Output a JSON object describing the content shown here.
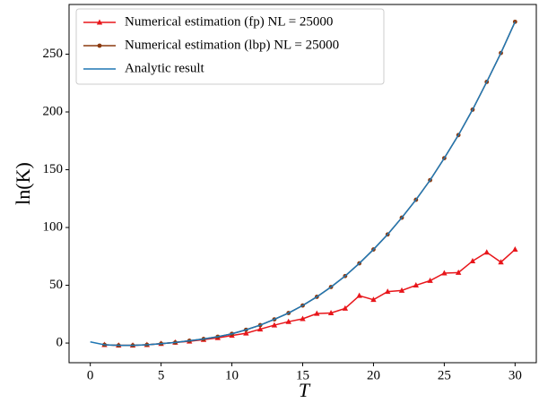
{
  "chart_data": {
    "type": "line",
    "xlabel": "T",
    "ylabel": "ln(K)",
    "xlim": [
      -1.5,
      31.5
    ],
    "ylim": [
      -17,
      293
    ],
    "xticks": [
      0,
      5,
      10,
      15,
      20,
      25,
      30
    ],
    "yticks": [
      0,
      50,
      100,
      150,
      200,
      250
    ],
    "legend": "upper left",
    "series": [
      {
        "name": "Numerical estimation (fp) NL = 25000",
        "color": "#e8161b",
        "marker": "triangle",
        "x": [
          1,
          2,
          3,
          4,
          5,
          6,
          7,
          8,
          9,
          10,
          11,
          12,
          13,
          14,
          15,
          16,
          17,
          18,
          19,
          20,
          21,
          22,
          23,
          24,
          25,
          26,
          27,
          28,
          29,
          30
        ],
        "values": [
          -1.5,
          -2,
          -2,
          -1.5,
          -0.5,
          0.5,
          1.5,
          3,
          4.5,
          6.5,
          8.5,
          12,
          15.5,
          18.5,
          21,
          25.5,
          26,
          30,
          41,
          37.5,
          44.5,
          45.5,
          50,
          54,
          60.5,
          61,
          71,
          78.5,
          70,
          81
        ]
      },
      {
        "name": "Numerical estimation (lbp) NL = 25000",
        "color": "#8b3a0f",
        "marker": "circle",
        "x": [
          1,
          2,
          3,
          4,
          5,
          6,
          7,
          8,
          9,
          10,
          11,
          12,
          13,
          14,
          15,
          16,
          17,
          18,
          19,
          20,
          21,
          22,
          23,
          24,
          25,
          26,
          27,
          28,
          29,
          30
        ],
        "values": [
          -1.5,
          -2,
          -2,
          -1.5,
          -0.5,
          0.5,
          2,
          3.5,
          5.5,
          8,
          11.5,
          15.5,
          20.5,
          26,
          32.5,
          40,
          48.5,
          58,
          69,
          81,
          94,
          108.5,
          124,
          141,
          160,
          180,
          202,
          226,
          251,
          278
        ]
      },
      {
        "name": "Analytic result",
        "color": "#1f77b4",
        "marker": "none",
        "x": [
          0,
          1,
          2,
          3,
          4,
          5,
          6,
          7,
          8,
          9,
          10,
          11,
          12,
          13,
          14,
          15,
          16,
          17,
          18,
          19,
          20,
          21,
          22,
          23,
          24,
          25,
          26,
          27,
          28,
          29,
          30
        ],
        "values": [
          1,
          -1.5,
          -2,
          -2,
          -1.5,
          -0.5,
          0.5,
          2,
          3.5,
          5.5,
          8,
          11.5,
          15.5,
          20.5,
          26,
          32.5,
          40,
          48.5,
          58,
          69,
          81,
          94,
          108.5,
          124,
          141,
          160,
          180,
          202,
          226,
          251,
          278
        ]
      }
    ]
  }
}
